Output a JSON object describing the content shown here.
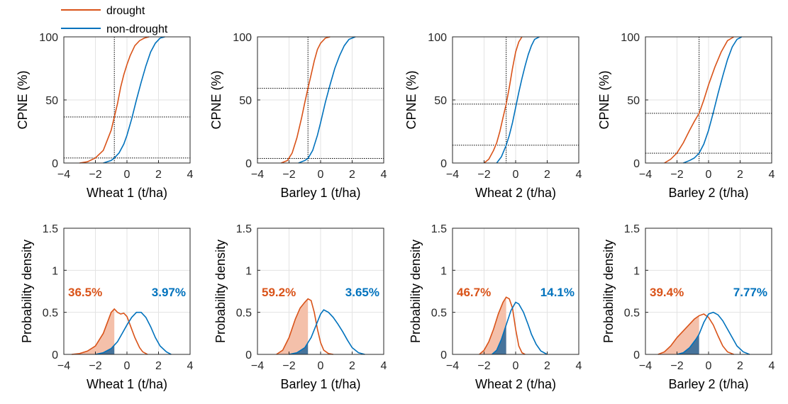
{
  "colors": {
    "drought": "#d95319",
    "non_drought": "#0072bd",
    "drought_fill": "#f4c0aa",
    "non_drought_fill": "#46739b"
  },
  "legend": {
    "drought": "drought",
    "non_drought": "non-drought",
    "placement": "top-left"
  },
  "chart_data": [
    {
      "type": "line",
      "title": "",
      "xlabel": "Wheat 1 (t/ha)",
      "ylabel": "CPNE (%)",
      "xlim": [
        -4,
        4
      ],
      "ylim": [
        0,
        100
      ],
      "xticks": [
        -4,
        -2,
        0,
        2,
        4
      ],
      "yticks": [
        0,
        50,
        100
      ],
      "grid": true,
      "threshold_x": -0.8,
      "hlines": [
        36.5,
        3.97
      ],
      "series": [
        {
          "name": "drought",
          "x": [
            -3.0,
            -2.5,
            -2.0,
            -1.5,
            -1.0,
            -0.8,
            -0.6,
            -0.4,
            -0.2,
            0.0,
            0.2,
            0.5,
            0.8,
            1.1,
            1.4
          ],
          "y": [
            0,
            1,
            4,
            10,
            26,
            36.5,
            47,
            60,
            70,
            78,
            85,
            93,
            97,
            99,
            100
          ]
        },
        {
          "name": "non-drought",
          "x": [
            -1.5,
            -1.0,
            -0.8,
            -0.5,
            -0.2,
            0.0,
            0.3,
            0.6,
            0.9,
            1.2,
            1.5,
            1.8,
            2.1,
            2.4
          ],
          "y": [
            0,
            2,
            3.97,
            8,
            15,
            22,
            35,
            50,
            64,
            77,
            88,
            95,
            99,
            100
          ]
        }
      ]
    },
    {
      "type": "line",
      "title": "",
      "xlabel": "Barley 1 (t/ha)",
      "ylabel": "CPNE (%)",
      "xlim": [
        -4,
        4
      ],
      "ylim": [
        0,
        100
      ],
      "xticks": [
        -4,
        -2,
        0,
        2,
        4
      ],
      "yticks": [
        0,
        50,
        100
      ],
      "grid": true,
      "threshold_x": -0.8,
      "hlines": [
        59.2,
        3.65
      ],
      "series": [
        {
          "name": "drought",
          "x": [
            -2.5,
            -2.1,
            -1.8,
            -1.5,
            -1.2,
            -1.0,
            -0.8,
            -0.6,
            -0.4,
            -0.2,
            0.0,
            0.3,
            0.6
          ],
          "y": [
            0,
            2,
            8,
            20,
            36,
            48,
            59.2,
            70,
            81,
            90,
            95,
            99,
            100
          ]
        },
        {
          "name": "non-drought",
          "x": [
            -1.4,
            -1.0,
            -0.8,
            -0.5,
            -0.2,
            0.0,
            0.3,
            0.6,
            0.9,
            1.2,
            1.5,
            1.8,
            2.2
          ],
          "y": [
            0,
            2,
            3.65,
            10,
            22,
            32,
            48,
            62,
            75,
            85,
            93,
            98,
            100
          ]
        }
      ]
    },
    {
      "type": "line",
      "title": "",
      "xlabel": "Wheat 2 (t/ha)",
      "ylabel": "CPNE (%)",
      "xlim": [
        -4,
        4
      ],
      "ylim": [
        0,
        100
      ],
      "xticks": [
        -4,
        -2,
        0,
        2,
        4
      ],
      "yticks": [
        0,
        50,
        100
      ],
      "grid": true,
      "threshold_x": -0.6,
      "hlines": [
        46.7,
        14.1
      ],
      "series": [
        {
          "name": "drought",
          "x": [
            -2.0,
            -1.7,
            -1.4,
            -1.2,
            -1.0,
            -0.8,
            -0.6,
            -0.4,
            -0.2,
            0.0,
            0.2,
            0.4
          ],
          "y": [
            0,
            3,
            10,
            16,
            25,
            36,
            46.7,
            60,
            75,
            88,
            96,
            100
          ]
        },
        {
          "name": "non-drought",
          "x": [
            -1.2,
            -0.9,
            -0.6,
            -0.4,
            -0.2,
            0.0,
            0.2,
            0.4,
            0.6,
            0.8,
            1.0,
            1.2,
            1.5
          ],
          "y": [
            0,
            5,
            14.1,
            22,
            32,
            44,
            56,
            67,
            77,
            86,
            93,
            98,
            100
          ]
        }
      ]
    },
    {
      "type": "line",
      "title": "",
      "xlabel": "Barley 2 (t/ha)",
      "ylabel": "CPNE (%)",
      "xlim": [
        -4,
        4
      ],
      "ylim": [
        0,
        100
      ],
      "xticks": [
        -4,
        -2,
        0,
        2,
        4
      ],
      "yticks": [
        0,
        50,
        100
      ],
      "grid": true,
      "threshold_x": -0.6,
      "hlines": [
        39.4,
        7.77
      ],
      "series": [
        {
          "name": "drought",
          "x": [
            -2.8,
            -2.4,
            -2.0,
            -1.6,
            -1.2,
            -0.9,
            -0.6,
            -0.3,
            0.0,
            0.4,
            0.8,
            1.2,
            1.6
          ],
          "y": [
            0,
            3,
            8,
            16,
            26,
            33,
            39.4,
            50,
            62,
            76,
            88,
            97,
            100
          ]
        },
        {
          "name": "non-drought",
          "x": [
            -1.6,
            -1.2,
            -0.9,
            -0.6,
            -0.3,
            0.0,
            0.3,
            0.6,
            0.9,
            1.2,
            1.5,
            1.8,
            2.1
          ],
          "y": [
            0,
            2,
            4,
            7.77,
            15,
            26,
            40,
            55,
            69,
            82,
            92,
            98,
            100
          ]
        }
      ]
    },
    {
      "type": "area",
      "title": "",
      "xlabel": "Wheat 1 (t/ha)",
      "ylabel": "Probability density",
      "xlim": [
        -4,
        4
      ],
      "ylim": [
        0,
        1.5
      ],
      "xticks": [
        -4,
        -2,
        0,
        2,
        4
      ],
      "yticks": [
        0,
        0.5,
        1,
        1.5
      ],
      "grid": true,
      "threshold_x": -0.8,
      "labels": {
        "drought": "36.5%",
        "non_drought": "3.97%"
      },
      "series": [
        {
          "name": "drought",
          "x": [
            -3.5,
            -3.0,
            -2.5,
            -2.0,
            -1.5,
            -1.2,
            -1.0,
            -0.8,
            -0.6,
            -0.4,
            -0.2,
            0.0,
            0.2,
            0.5,
            0.8,
            1.0,
            1.3
          ],
          "y": [
            0,
            0.01,
            0.04,
            0.1,
            0.25,
            0.4,
            0.5,
            0.54,
            0.5,
            0.48,
            0.49,
            0.45,
            0.35,
            0.2,
            0.08,
            0.03,
            0
          ]
        },
        {
          "name": "non-drought",
          "x": [
            -2.0,
            -1.5,
            -1.0,
            -0.6,
            -0.3,
            0.0,
            0.3,
            0.6,
            0.9,
            1.2,
            1.5,
            1.8,
            2.1,
            2.5,
            2.8
          ],
          "y": [
            0,
            0.02,
            0.07,
            0.15,
            0.25,
            0.35,
            0.44,
            0.5,
            0.5,
            0.44,
            0.33,
            0.2,
            0.1,
            0.03,
            0
          ]
        }
      ]
    },
    {
      "type": "area",
      "title": "",
      "xlabel": "Barley 1 (t/ha)",
      "ylabel": "Probability density",
      "xlim": [
        -4,
        4
      ],
      "ylim": [
        0,
        1.5
      ],
      "xticks": [
        -4,
        -2,
        0,
        2,
        4
      ],
      "yticks": [
        0,
        0.5,
        1,
        1.5
      ],
      "grid": true,
      "threshold_x": -0.8,
      "labels": {
        "drought": "59.2%",
        "non_drought": "3.65%"
      },
      "series": [
        {
          "name": "drought",
          "x": [
            -2.8,
            -2.4,
            -2.0,
            -1.6,
            -1.3,
            -1.0,
            -0.8,
            -0.6,
            -0.4,
            -0.2,
            0.0,
            0.2,
            0.5,
            0.8
          ],
          "y": [
            0,
            0.05,
            0.2,
            0.42,
            0.55,
            0.62,
            0.66,
            0.64,
            0.5,
            0.3,
            0.14,
            0.05,
            0.01,
            0
          ]
        },
        {
          "name": "non-drought",
          "x": [
            -2.0,
            -1.5,
            -1.0,
            -0.6,
            -0.3,
            0.0,
            0.2,
            0.5,
            0.8,
            1.1,
            1.4,
            1.7,
            2.0,
            2.4,
            2.8
          ],
          "y": [
            0,
            0.02,
            0.08,
            0.2,
            0.34,
            0.48,
            0.53,
            0.5,
            0.44,
            0.36,
            0.27,
            0.17,
            0.08,
            0.02,
            0
          ]
        }
      ]
    },
    {
      "type": "area",
      "title": "",
      "xlabel": "Wheat 2 (t/ha)",
      "ylabel": "Probability density",
      "xlim": [
        -4,
        4
      ],
      "ylim": [
        0,
        1.5
      ],
      "xticks": [
        -4,
        -2,
        0,
        2,
        4
      ],
      "yticks": [
        0,
        0.5,
        1,
        1.5
      ],
      "grid": true,
      "threshold_x": -0.6,
      "labels": {
        "drought": "46.7%",
        "non_drought": "14.1%"
      },
      "series": [
        {
          "name": "drought",
          "x": [
            -2.3,
            -2.0,
            -1.7,
            -1.4,
            -1.1,
            -0.8,
            -0.6,
            -0.4,
            -0.2,
            0.0,
            0.2,
            0.4,
            0.6
          ],
          "y": [
            0,
            0.05,
            0.15,
            0.3,
            0.48,
            0.62,
            0.68,
            0.66,
            0.55,
            0.3,
            0.1,
            0.02,
            0
          ]
        },
        {
          "name": "non-drought",
          "x": [
            -1.5,
            -1.2,
            -0.9,
            -0.6,
            -0.3,
            0.0,
            0.2,
            0.5,
            0.8,
            1.0,
            1.3,
            1.6,
            2.0
          ],
          "y": [
            0,
            0.05,
            0.18,
            0.35,
            0.52,
            0.62,
            0.6,
            0.5,
            0.35,
            0.24,
            0.12,
            0.04,
            0
          ]
        }
      ]
    },
    {
      "type": "area",
      "title": "",
      "xlabel": "Barley 2 (t/ha)",
      "ylabel": "Probability density",
      "xlim": [
        -4,
        4
      ],
      "ylim": [
        0,
        1.5
      ],
      "xticks": [
        -4,
        -2,
        0,
        2,
        4
      ],
      "yticks": [
        0,
        0.5,
        1,
        1.5
      ],
      "grid": true,
      "threshold_x": -0.6,
      "labels": {
        "drought": "39.4%",
        "non_drought": "7.77%"
      },
      "series": [
        {
          "name": "drought",
          "x": [
            -3.2,
            -2.8,
            -2.4,
            -2.0,
            -1.6,
            -1.2,
            -0.9,
            -0.6,
            -0.3,
            0.0,
            0.3,
            0.6,
            0.9,
            1.2,
            1.6
          ],
          "y": [
            0,
            0.03,
            0.1,
            0.2,
            0.28,
            0.36,
            0.42,
            0.46,
            0.48,
            0.44,
            0.35,
            0.22,
            0.1,
            0.03,
            0
          ]
        },
        {
          "name": "non-drought",
          "x": [
            -2.0,
            -1.6,
            -1.2,
            -0.8,
            -0.6,
            -0.3,
            0.0,
            0.3,
            0.6,
            0.9,
            1.2,
            1.5,
            1.8,
            2.2,
            2.6
          ],
          "y": [
            0,
            0.02,
            0.08,
            0.18,
            0.24,
            0.38,
            0.48,
            0.5,
            0.47,
            0.4,
            0.3,
            0.2,
            0.1,
            0.03,
            0
          ]
        }
      ]
    }
  ]
}
